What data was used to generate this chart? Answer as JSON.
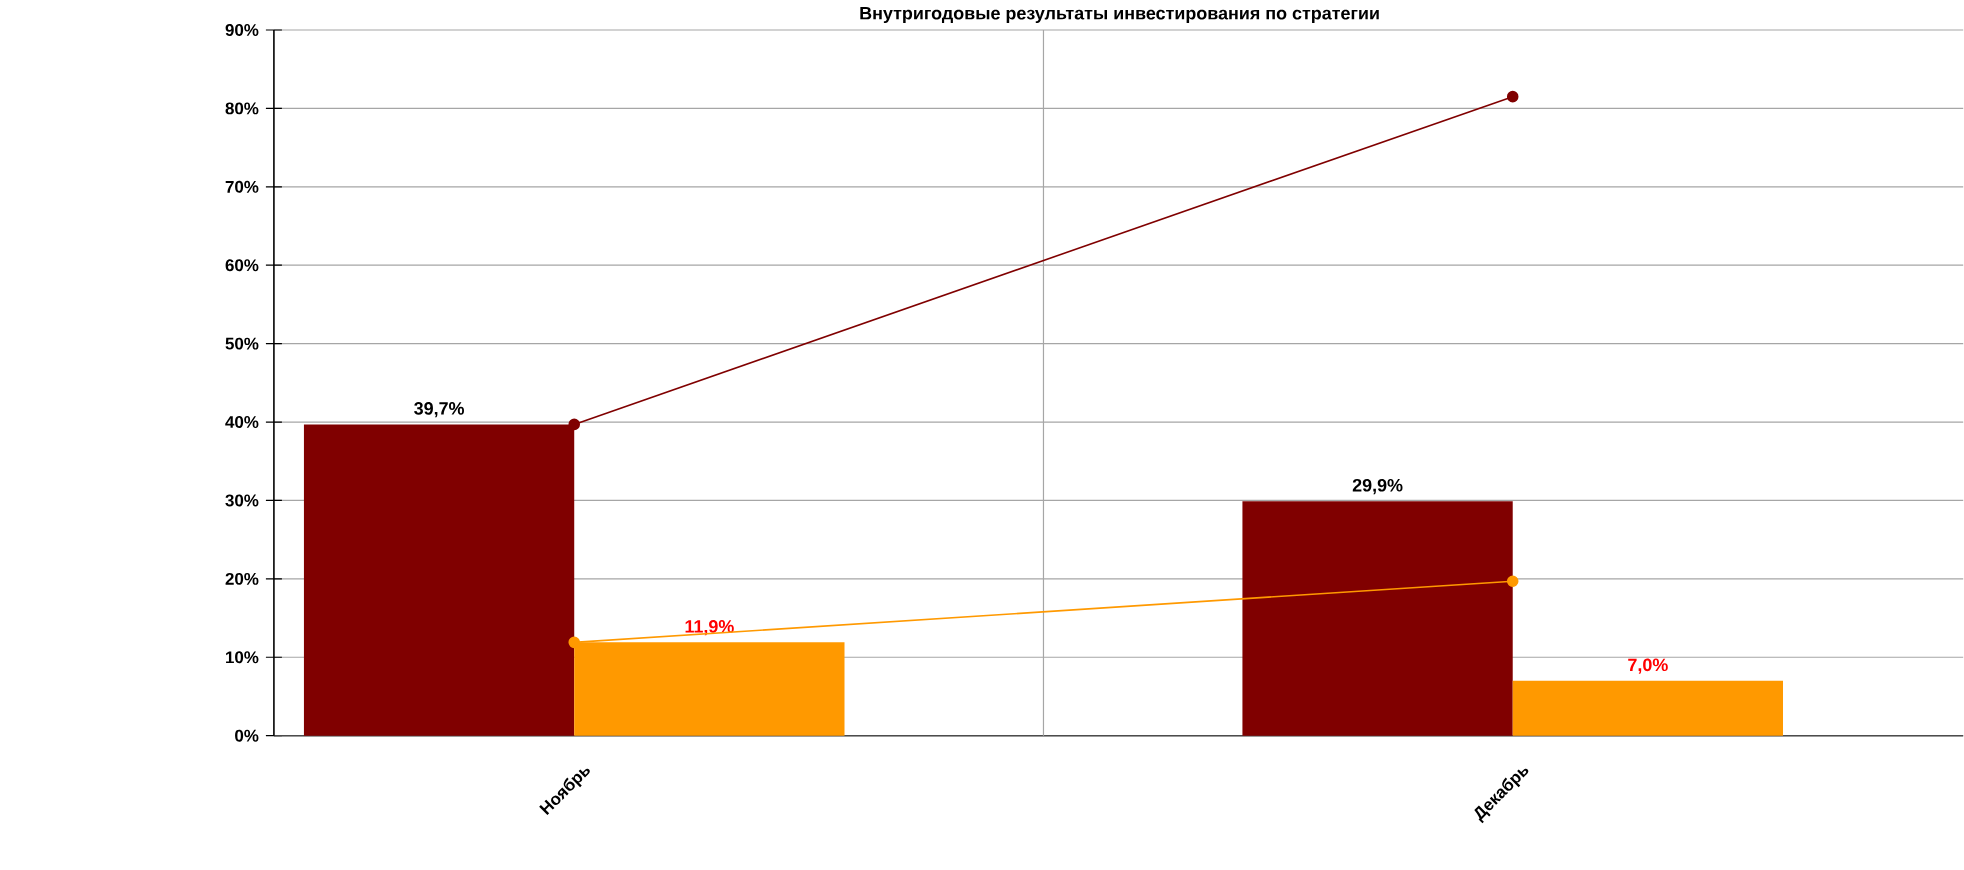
{
  "chart_data": {
    "type": "bar",
    "title": "Внутригодовые результаты инвестирования по стратегии",
    "categories": [
      "Ноябрь",
      "Декабрь"
    ],
    "series": [
      {
        "color": "#800000",
        "values": [
          39.7,
          29.9
        ],
        "value_labels": [
          "39,7%",
          "29,9%"
        ]
      },
      {
        "color": "#ff9900",
        "values": [
          11.9,
          7.0
        ],
        "value_labels": [
          "11,9%",
          "7,0%"
        ]
      },
      {
        "type": "line",
        "color": "#800000",
        "values": [
          39.7,
          81.5
        ]
      },
      {
        "type": "line",
        "color": "#ff9900",
        "values": [
          11.9,
          19.7
        ]
      }
    ],
    "ylim": [
      0,
      90
    ],
    "yticks": [
      {
        "value": 0,
        "label": "0%"
      },
      {
        "value": 10,
        "label": "10%"
      },
      {
        "value": 20,
        "label": "20%"
      },
      {
        "value": 30,
        "label": "30%"
      },
      {
        "value": 40,
        "label": "40%"
      },
      {
        "value": 50,
        "label": "50%"
      },
      {
        "value": 60,
        "label": "60%"
      },
      {
        "value": 70,
        "label": "70%"
      },
      {
        "value": 80,
        "label": "80%"
      },
      {
        "value": 90,
        "label": "90%"
      }
    ],
    "grid": true,
    "marker": "circle",
    "line_style": "solid"
  }
}
